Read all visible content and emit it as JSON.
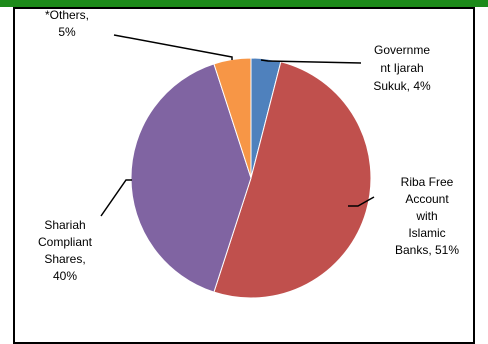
{
  "chart_data": {
    "type": "pie",
    "title": "",
    "slices": [
      {
        "label_lines": [
          "Governme",
          "nt Ijarah",
          "Sukuk, 4%"
        ],
        "value": 4,
        "color": "#4f81bd"
      },
      {
        "label_lines": [
          "Riba Free",
          "Account",
          "with",
          "Islamic",
          "Banks, 51%"
        ],
        "value": 51,
        "color": "#c0504d"
      },
      {
        "label_lines": [
          "Shariah",
          "Compliant",
          "Shares,",
          "40%"
        ],
        "value": 40,
        "color": "#8064a2"
      },
      {
        "label_lines": [
          "*Others,",
          "5%"
        ],
        "value": 5,
        "color": "#f79646"
      }
    ],
    "start_direction": "12 o'clock",
    "direction": "clockwise",
    "legend": "none"
  },
  "colors": {
    "frame_border": "#000000",
    "top_band": "#1d8a1a",
    "background": "#ffffff"
  }
}
